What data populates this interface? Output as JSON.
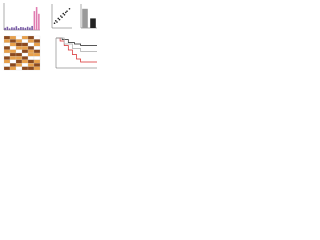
{
  "chart_data": [
    {
      "type": "bar",
      "color": "#7b5ea7",
      "highlight_color": "#e07bb0",
      "highlight_from": 13,
      "categories": [
        null,
        null,
        null,
        null,
        null,
        null,
        null,
        null,
        null,
        null,
        null,
        null,
        null,
        null,
        null,
        null
      ],
      "values": [
        8,
        12,
        6,
        10,
        9,
        14,
        7,
        11,
        10,
        8,
        12,
        9,
        15,
        70,
        85,
        60
      ],
      "ylim": [
        0,
        100
      ]
    },
    {
      "type": "scatter",
      "color": "#222222",
      "x": [
        10,
        15,
        20,
        25,
        30,
        35,
        40,
        45,
        50,
        55,
        60,
        70
      ],
      "values": [
        20,
        30,
        25,
        40,
        35,
        50,
        45,
        60,
        55,
        65,
        70,
        80
      ],
      "xlim": [
        0,
        80
      ],
      "ylim": [
        0,
        100
      ]
    },
    {
      "type": "bar",
      "colors": [
        "#9a9a9a",
        "#222222"
      ],
      "categories": [
        null,
        null
      ],
      "values": [
        80,
        40
      ],
      "ylim": [
        0,
        100
      ]
    },
    {
      "type": "heatmap",
      "colors": [
        "#ffffff",
        "#e8a04a",
        "#8c4a1e"
      ],
      "values": [
        [
          2,
          1,
          0,
          1,
          2,
          0
        ],
        [
          1,
          2,
          1,
          0,
          1,
          2
        ],
        [
          0,
          1,
          2,
          2,
          0,
          1
        ],
        [
          2,
          0,
          1,
          1,
          2,
          0
        ],
        [
          1,
          1,
          0,
          2,
          1,
          2
        ],
        [
          0,
          2,
          2,
          0,
          1,
          1
        ],
        [
          2,
          1,
          1,
          2,
          0,
          0
        ],
        [
          1,
          0,
          2,
          1,
          2,
          1
        ],
        [
          0,
          2,
          1,
          0,
          1,
          2
        ],
        [
          2,
          1,
          0,
          2,
          2,
          1
        ]
      ]
    },
    {
      "type": "line",
      "step": true,
      "xlim": [
        0,
        100
      ],
      "ylim": [
        0,
        100
      ],
      "series": [
        {
          "color": "#d62728",
          "x": [
            0,
            10,
            20,
            30,
            40,
            50,
            60,
            100
          ],
          "values": [
            100,
            90,
            75,
            60,
            45,
            30,
            20,
            20
          ]
        },
        {
          "color": "#222222",
          "x": [
            0,
            15,
            30,
            45,
            60,
            100
          ],
          "values": [
            100,
            95,
            85,
            80,
            75,
            75
          ]
        },
        {
          "color": "#aaaaaa",
          "x": [
            0,
            20,
            40,
            60,
            100
          ],
          "values": [
            100,
            80,
            65,
            55,
            55
          ]
        }
      ]
    }
  ]
}
